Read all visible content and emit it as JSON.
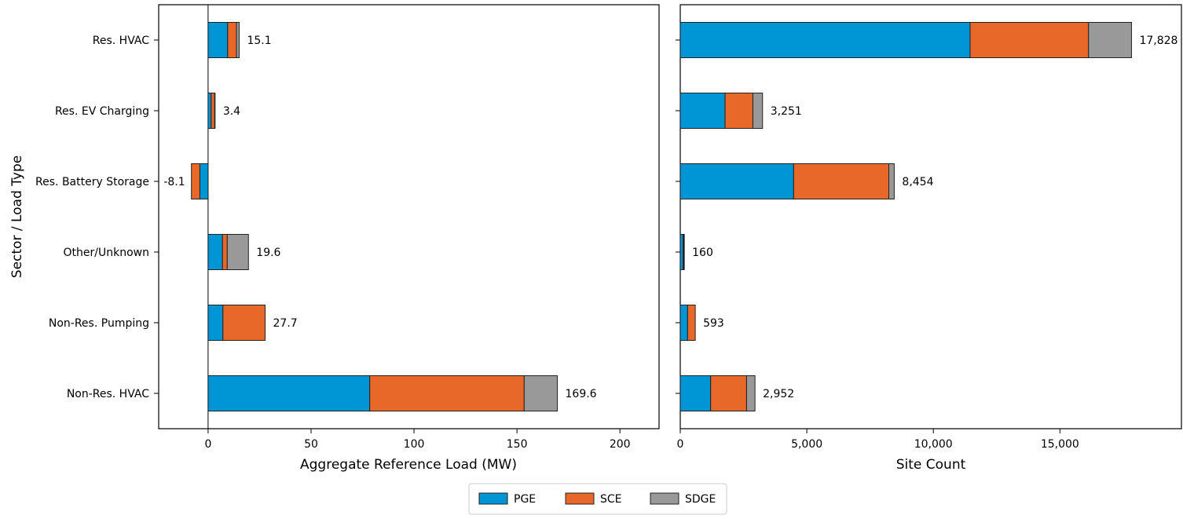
{
  "colors": {
    "PGE": "#0096d6",
    "SCE": "#e8682a",
    "SDGE": "#999999"
  },
  "y_axis_label": "Sector / Load Type",
  "categories": [
    "Res. HVAC",
    "Res. EV Charging",
    "Res. Battery Storage",
    "Other/Unknown",
    "Non-Res. Pumping",
    "Non-Res. HVAC"
  ],
  "legend": [
    "PGE",
    "SCE",
    "SDGE"
  ],
  "chart_data": [
    {
      "type": "bar",
      "orientation": "horizontal",
      "stacked": true,
      "xlabel": "Aggregate Reference Load (MW)",
      "ylabel": "Sector / Load Type",
      "xlim": [
        -24,
        219
      ],
      "xticks": [
        0,
        50,
        100,
        150,
        200
      ],
      "xtick_labels": [
        "0",
        "50",
        "100",
        "150",
        "200"
      ],
      "zero_line": true,
      "categories": [
        "Res. HVAC",
        "Res. EV Charging",
        "Res. Battery Storage",
        "Other/Unknown",
        "Non-Res. Pumping",
        "Non-Res. HVAC"
      ],
      "series": [
        {
          "name": "PGE",
          "values": [
            9.5,
            1.5,
            -4.0,
            7.0,
            7.2,
            78.5
          ]
        },
        {
          "name": "SCE",
          "values": [
            4.3,
            1.7,
            -4.1,
            2.3,
            20.5,
            75.0
          ]
        },
        {
          "name": "SDGE",
          "values": [
            1.3,
            0.2,
            0.0,
            10.3,
            0.0,
            16.1
          ]
        }
      ],
      "totals": [
        15.1,
        3.4,
        -8.1,
        19.6,
        27.7,
        169.6
      ],
      "total_labels": [
        "15.1",
        "3.4",
        "-8.1",
        "19.6",
        "27.7",
        "169.6"
      ]
    },
    {
      "type": "bar",
      "orientation": "horizontal",
      "stacked": true,
      "xlabel": "Site Count",
      "xlim": [
        0,
        19800
      ],
      "xticks": [
        0,
        5000,
        10000,
        15000
      ],
      "xtick_labels": [
        "0",
        "5,000",
        "10,000",
        "15,000"
      ],
      "categories": [
        "Res. HVAC",
        "Res. EV Charging",
        "Res. Battery Storage",
        "Other/Unknown",
        "Non-Res. Pumping",
        "Non-Res. HVAC"
      ],
      "series": [
        {
          "name": "PGE",
          "values": [
            11450,
            1770,
            4480,
            110,
            290,
            1200
          ]
        },
        {
          "name": "SCE",
          "values": [
            4680,
            1100,
            3760,
            30,
            303,
            1420
          ]
        },
        {
          "name": "SDGE",
          "values": [
            1698,
            381,
            214,
            20,
            0,
            332
          ]
        }
      ],
      "totals": [
        17828,
        3251,
        8454,
        160,
        593,
        2952
      ],
      "total_labels": [
        "17,828",
        "3,251",
        "8,454",
        "160",
        "593",
        "2,952"
      ]
    }
  ]
}
